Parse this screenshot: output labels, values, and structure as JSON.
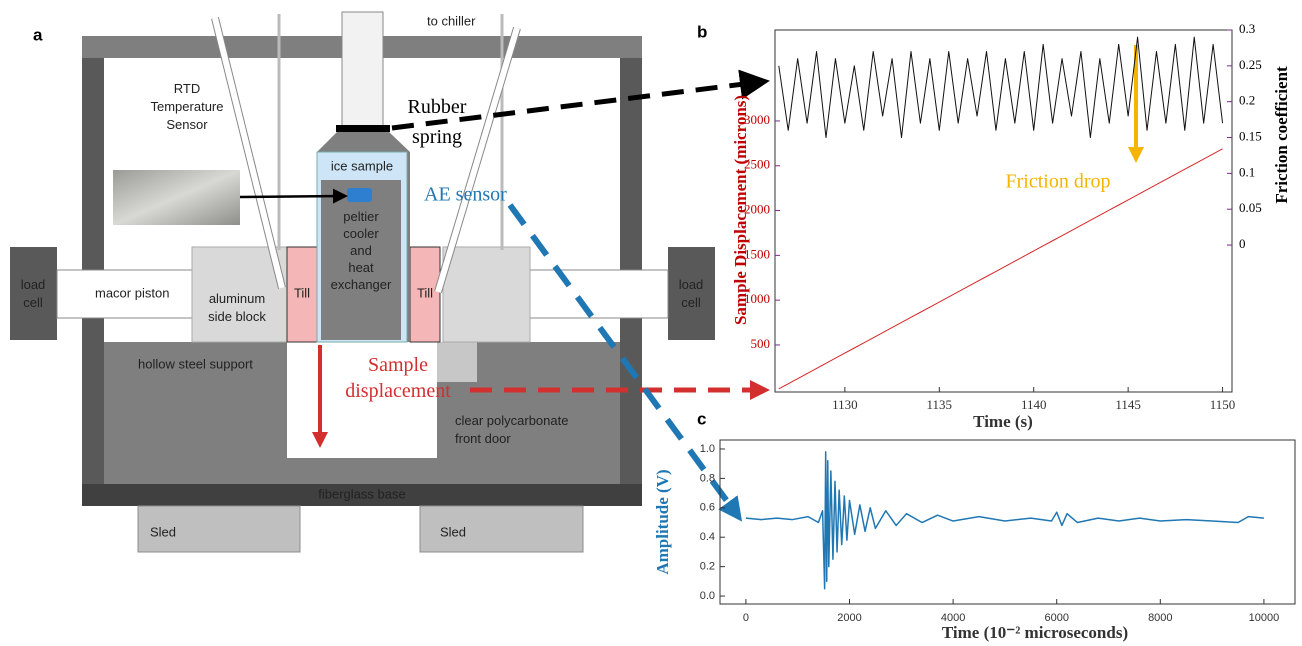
{
  "diagram": {
    "panel_label": "a",
    "to_chiller": "to chiller",
    "rtd_sensor": [
      "RTD",
      "Temperature",
      "Sensor"
    ],
    "rubber_spring": [
      "Rubber",
      "spring"
    ],
    "ice_sample": "ice sample",
    "peltier": [
      "peltier",
      "cooler",
      "and",
      "heat",
      "exchanger"
    ],
    "ae_sensor": "AE sensor",
    "load_cell_left": [
      "load",
      "cell"
    ],
    "load_cell_right": [
      "load",
      "cell"
    ],
    "macor_piston": "macor piston",
    "aluminum_side_block": [
      "aluminum",
      "side block"
    ],
    "till_left": "Till",
    "till_right": "Till",
    "hollow_steel_support": "hollow steel support",
    "sample_displacement": [
      "Sample",
      "displacement"
    ],
    "front_door": [
      "clear polycarbonate",
      "front door"
    ],
    "fiberglass_base": "fiberglass base",
    "sled_left": "Sled",
    "sled_right": "Sled"
  },
  "chart_data": [
    {
      "type": "line",
      "panel_label": "b",
      "x_label": "Time (s)",
      "y_label": "Sample Displacement (microns)",
      "y2_label": "Friction coefficient",
      "annotation": "Friction drop",
      "x": [
        1126.5,
        1127,
        1127.5,
        1128,
        1128.5,
        1129,
        1129.5,
        1130,
        1130.5,
        1131,
        1131.5,
        1132,
        1132.5,
        1133,
        1133.5,
        1134,
        1134.5,
        1135,
        1135.5,
        1136,
        1136.5,
        1137,
        1137.5,
        1138,
        1138.5,
        1139,
        1139.5,
        1140,
        1140.5,
        1141,
        1141.5,
        1142,
        1142.5,
        1143,
        1143.5,
        1144,
        1144.5,
        1145,
        1145.5,
        1146,
        1146.5,
        1147,
        1147.5,
        1148,
        1148.5,
        1149,
        1149.5,
        1150
      ],
      "xlim": [
        1126.3,
        1150.5
      ],
      "xticks": [
        1130,
        1135,
        1140,
        1145,
        1150
      ],
      "ylim": [
        -25,
        4015
      ],
      "yticks": [
        500,
        1000,
        1500,
        2000,
        2500,
        3000
      ],
      "y2lim": [
        -0.205,
        0.3
      ],
      "y2ticks": [
        0,
        0.05,
        0.1,
        0.15,
        0.2,
        0.25,
        0.3
      ],
      "series": [
        {
          "color": "#d62728",
          "values": [
            10,
            67,
            124,
            181,
            238,
            295,
            352,
            409,
            466,
            523,
            580,
            637,
            694,
            751,
            808,
            865,
            922,
            979,
            1036,
            1093,
            1150,
            1207,
            1264,
            1321,
            1378,
            1435,
            1492,
            1549,
            1606,
            1663,
            1720,
            1777,
            1834,
            1891,
            1948,
            2005,
            2062,
            2119,
            2176,
            2233,
            2290,
            2347,
            2404,
            2461,
            2518,
            2575,
            2632,
            2689
          ]
        },
        {
          "color": "#111111",
          "axis": "y2",
          "values": [
            0.25,
            0.16,
            0.26,
            0.17,
            0.27,
            0.15,
            0.26,
            0.17,
            0.25,
            0.16,
            0.27,
            0.18,
            0.26,
            0.15,
            0.27,
            0.17,
            0.26,
            0.16,
            0.27,
            0.17,
            0.26,
            0.18,
            0.27,
            0.16,
            0.26,
            0.17,
            0.27,
            0.16,
            0.28,
            0.17,
            0.26,
            0.18,
            0.27,
            0.15,
            0.26,
            0.17,
            0.28,
            0.18,
            0.29,
            0.16,
            0.27,
            0.17,
            0.28,
            0.16,
            0.29,
            0.17,
            0.28,
            0.17
          ]
        }
      ]
    },
    {
      "type": "line",
      "panel_label": "c",
      "x_label": "Time (10⁻² microseconds)",
      "y_label": "Amplitude  (V)",
      "x": [
        0,
        300,
        600,
        900,
        1200,
        1400,
        1480,
        1520,
        1540,
        1560,
        1580,
        1600,
        1640,
        1680,
        1720,
        1760,
        1800,
        1850,
        1900,
        1950,
        2000,
        2100,
        2200,
        2300,
        2400,
        2500,
        2700,
        2900,
        3100,
        3400,
        3700,
        4000,
        4500,
        5000,
        5500,
        5900,
        6000,
        6100,
        6200,
        6400,
        6800,
        7200,
        7600,
        8000,
        8500,
        9000,
        9500,
        9700,
        10000
      ],
      "xlim": [
        -500,
        10600
      ],
      "xticks": [
        0,
        2000,
        4000,
        6000,
        8000,
        10000
      ],
      "ylim": [
        -0.054,
        1.061
      ],
      "yticks": [
        {
          "value": 0,
          "label": "0.0"
        },
        0.2,
        0.4,
        0.6,
        0.8,
        {
          "value": 1,
          "label": "1.0"
        }
      ],
      "series": [
        {
          "color": "#1f77b4",
          "values": [
            0.53,
            0.52,
            0.53,
            0.52,
            0.54,
            0.5,
            0.58,
            0.05,
            0.98,
            0.1,
            0.92,
            0.2,
            0.85,
            0.25,
            0.78,
            0.3,
            0.72,
            0.35,
            0.68,
            0.38,
            0.65,
            0.42,
            0.62,
            0.44,
            0.6,
            0.46,
            0.58,
            0.48,
            0.56,
            0.5,
            0.55,
            0.51,
            0.54,
            0.51,
            0.53,
            0.51,
            0.57,
            0.48,
            0.56,
            0.5,
            0.53,
            0.51,
            0.53,
            0.51,
            0.52,
            0.51,
            0.5,
            0.54,
            0.53
          ]
        }
      ]
    }
  ]
}
